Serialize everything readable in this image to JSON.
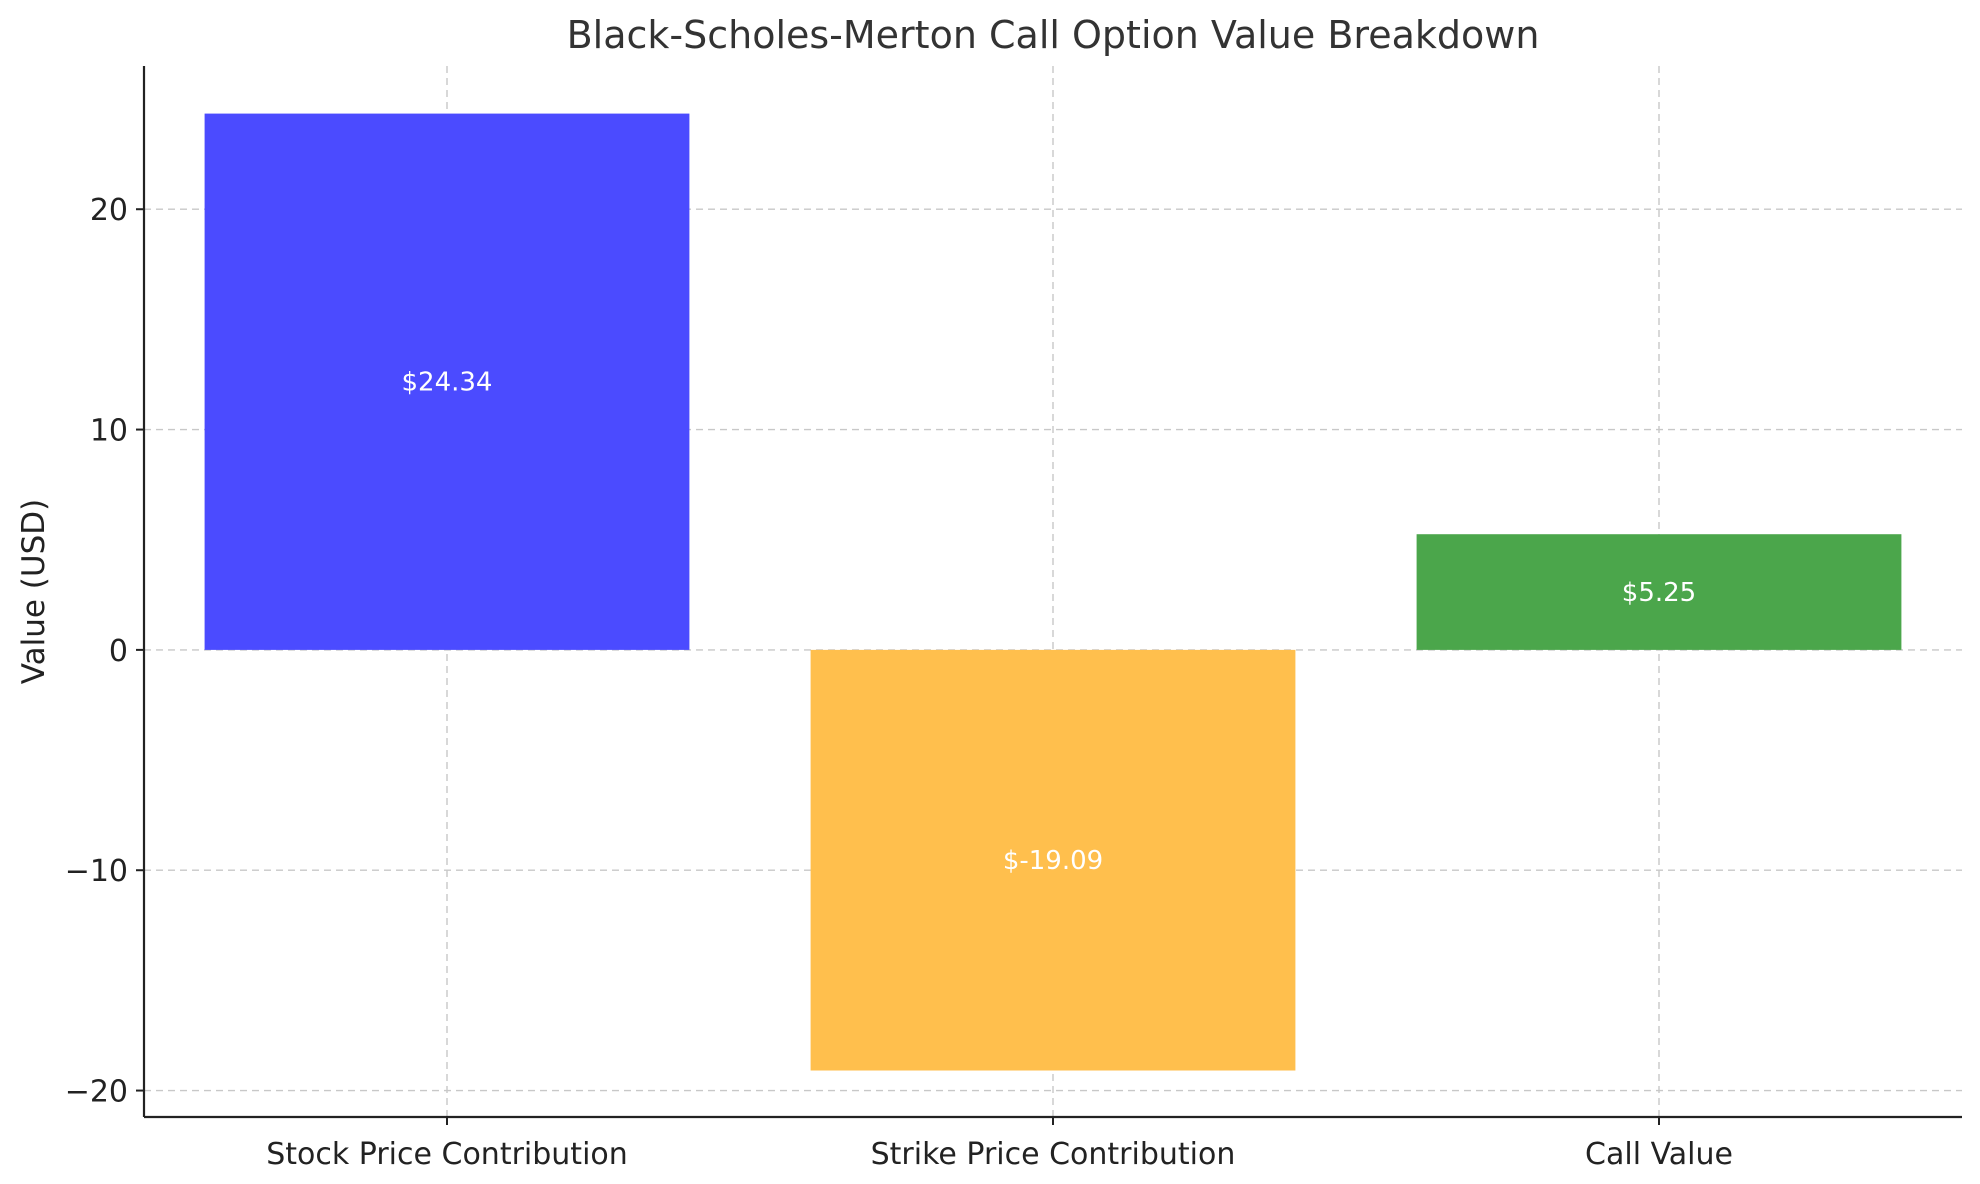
{
  "chart_data": {
    "type": "bar",
    "title": "Black-Scholes-Merton Call Option Value Breakdown",
    "xlabel": "",
    "ylabel": "Value (USD)",
    "categories": [
      "Stock Price Contribution",
      "Strike Price Contribution",
      "Call Value"
    ],
    "values": [
      24.34,
      -19.09,
      5.25
    ],
    "data_labels": [
      "$24.34",
      "$-19.09",
      "$5.25"
    ],
    "colors": [
      "#4B4BFF",
      "#FFBF4D",
      "#4BA64B"
    ],
    "ylim": [
      -21.2,
      26.5
    ],
    "yticks": [
      -20,
      -10,
      0,
      10,
      20
    ],
    "ytick_labels": [
      "−20",
      "−10",
      "0",
      "10",
      "20"
    ],
    "grid": true,
    "legend": "none"
  }
}
